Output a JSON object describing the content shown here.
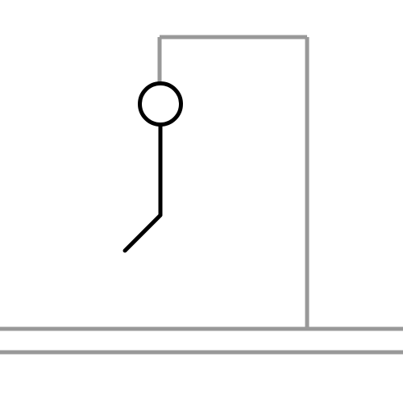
{
  "game": {
    "name": "hangman",
    "parts_shown": [
      "head",
      "body",
      "left-leg"
    ],
    "colors": {
      "background": "#ffffff",
      "gallows": "#999999",
      "figure": "#000000"
    }
  }
}
